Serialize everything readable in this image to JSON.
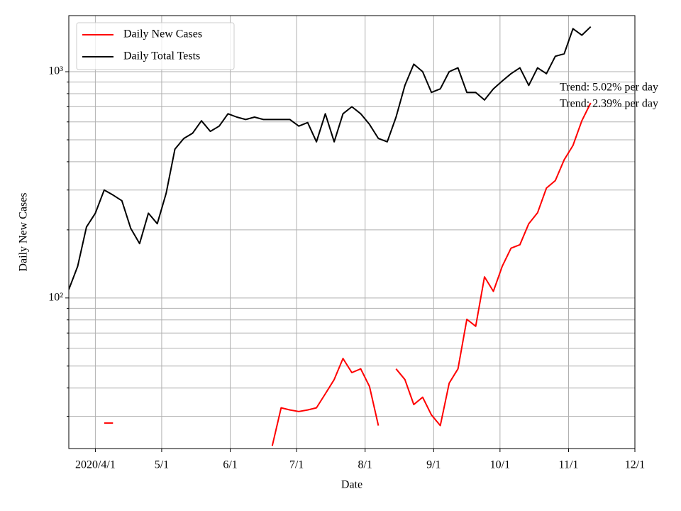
{
  "chart_data": {
    "type": "line",
    "xlabel": "Date",
    "ylabel": "Daily New Cases",
    "log_y": true,
    "grid": true,
    "legend": "upper left",
    "x": [
      "2020-03-20",
      "2020-03-24",
      "2020-03-28",
      "2020-04-01",
      "2020-04-05",
      "2020-04-09",
      "2020-04-13",
      "2020-04-17",
      "2020-04-21",
      "2020-04-25",
      "2020-04-29",
      "2020-05-03",
      "2020-05-07",
      "2020-05-11",
      "2020-05-15",
      "2020-05-19",
      "2020-05-23",
      "2020-05-27",
      "2020-05-31",
      "2020-06-04",
      "2020-06-08",
      "2020-06-12",
      "2020-06-16",
      "2020-06-20",
      "2020-06-24",
      "2020-06-28",
      "2020-07-02",
      "2020-07-06",
      "2020-07-10",
      "2020-07-14",
      "2020-07-18",
      "2020-07-22",
      "2020-07-26",
      "2020-07-30",
      "2020-08-03",
      "2020-08-07",
      "2020-08-11",
      "2020-08-15",
      "2020-08-19",
      "2020-08-23",
      "2020-08-27",
      "2020-08-31",
      "2020-09-04",
      "2020-09-08",
      "2020-09-12",
      "2020-09-16",
      "2020-09-20",
      "2020-09-24",
      "2020-09-28",
      "2020-10-02",
      "2020-10-06",
      "2020-10-10",
      "2020-10-14",
      "2020-10-18",
      "2020-10-22",
      "2020-10-26",
      "2020-10-30",
      "2020-11-03",
      "2020-11-07",
      "2020-11-11"
    ],
    "series": [
      {
        "name": "Daily New Cases",
        "color": "#ff0000",
        "values": [
          null,
          null,
          null,
          null,
          28,
          28,
          null,
          null,
          null,
          null,
          null,
          null,
          null,
          null,
          null,
          null,
          null,
          null,
          null,
          null,
          null,
          null,
          null,
          22.2,
          32.7,
          32,
          31.5,
          32,
          32.7,
          37.7,
          43.6,
          54,
          46.8,
          48.6,
          40.6,
          27.3,
          null,
          48.6,
          43.6,
          33.8,
          36.4,
          30.4,
          27.3,
          42,
          48.6,
          80.5,
          75,
          124,
          107,
          138,
          166,
          172,
          213,
          238,
          306,
          330,
          408,
          472,
          607,
          728
        ]
      },
      {
        "name": "Daily Total Tests",
        "color": "#000000",
        "values": [
          109,
          138,
          206,
          237,
          300,
          285,
          269,
          203,
          174,
          237,
          213,
          290,
          455,
          507,
          535,
          607,
          545,
          575,
          652,
          630,
          615,
          630,
          615,
          615,
          615,
          615,
          575,
          596,
          490,
          652,
          490,
          652,
          700,
          652,
          585,
          507,
          490,
          630,
          870,
          1080,
          1000,
          810,
          840,
          1000,
          1040,
          810,
          810,
          750,
          840,
          910,
          980,
          1040,
          870,
          1040,
          980,
          1170,
          1200,
          1550,
          1450,
          1580
        ]
      }
    ],
    "xlim": [
      "2020-03-20",
      "2020-12-01"
    ],
    "xticks": [
      {
        "value": "2020-04-01",
        "label": "2020/4/1"
      },
      {
        "value": "2020-05-01",
        "label": "5/1"
      },
      {
        "value": "2020-06-01",
        "label": "6/1"
      },
      {
        "value": "2020-07-01",
        "label": "7/1"
      },
      {
        "value": "2020-08-01",
        "label": "8/1"
      },
      {
        "value": "2020-09-01",
        "label": "9/1"
      },
      {
        "value": "2020-10-01",
        "label": "10/1"
      },
      {
        "value": "2020-11-01",
        "label": "11/1"
      },
      {
        "value": "2020-12-01",
        "label": "12/1"
      }
    ],
    "ylim": [
      21.6,
      1770
    ],
    "yticks": [
      {
        "value": 100,
        "label": "10²"
      },
      {
        "value": 1000,
        "label": "10³"
      }
    ],
    "yminorticks": [
      30,
      40,
      50,
      60,
      70,
      80,
      90,
      200,
      300,
      400,
      500,
      600,
      700,
      800,
      900
    ],
    "annotations": [
      "Trend: 5.02% per day",
      "Trend: 2.39% per day"
    ]
  }
}
